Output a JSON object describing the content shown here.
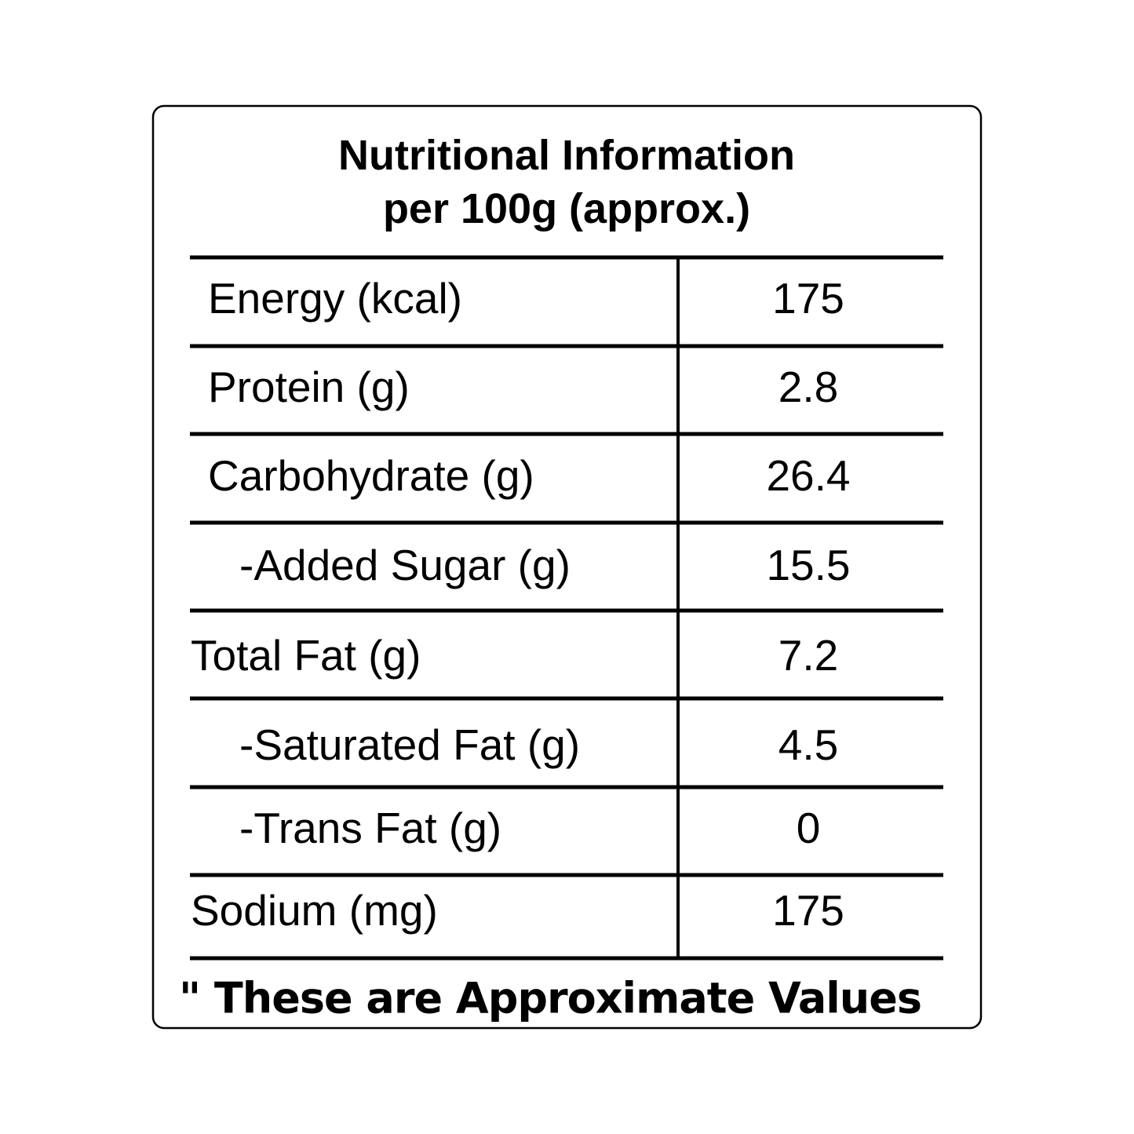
{
  "header": {
    "title": [
      "Nutritional Information",
      "per 100g (approx.)"
    ]
  },
  "table": {
    "rows": [
      [
        "Energy (kcal)",
        "175"
      ],
      [
        "Protein (g)",
        "2.8"
      ],
      [
        "Carbohydrate (g)",
        "26.4"
      ],
      [
        "-Added Sugar (g)",
        "15.5"
      ],
      [
        "Total Fat (g)",
        "7.2"
      ],
      [
        "-Saturated Fat (g)",
        "4.5"
      ],
      [
        "-Trans Fat (g)",
        "0"
      ],
      [
        "Sodium (mg)",
        "175"
      ]
    ]
  },
  "footnote": "\" These are Approximate Values"
}
